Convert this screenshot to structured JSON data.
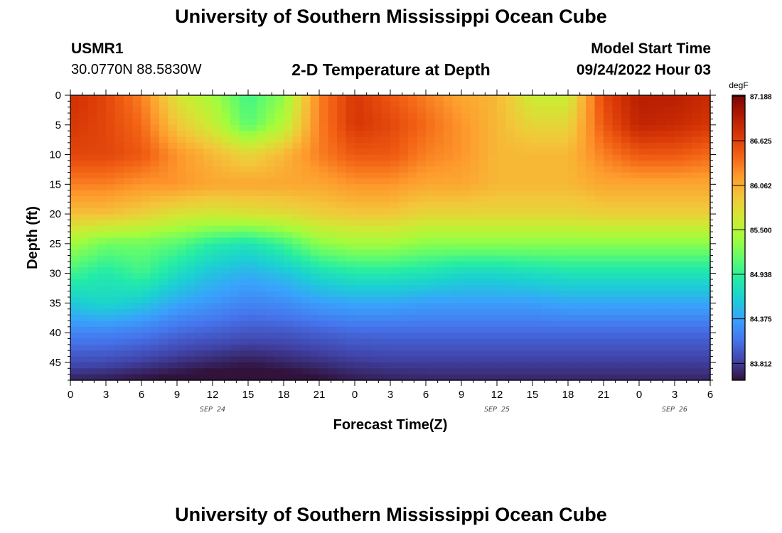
{
  "header": {
    "title": "University of Southern Mississippi Ocean Cube",
    "station": "USMR1",
    "coords": "30.0770N  88.5830W",
    "plot_title": "2-D Temperature at Depth",
    "model_label": "Model Start Time",
    "model_time": "09/24/2022 Hour 03"
  },
  "footer": {
    "title": "University of Southern Mississippi Ocean Cube"
  },
  "colors": {
    "scale": [
      "#30123b",
      "#4145ab",
      "#4675ed",
      "#39a2fc",
      "#1bcfd4",
      "#24eca6",
      "#61fc6c",
      "#a4fc3b",
      "#d1e834",
      "#f3c63a",
      "#fe9b2d",
      "#f36315",
      "#d93806",
      "#b11901",
      "#7a0403"
    ]
  },
  "chart_data": {
    "type": "heatmap",
    "title": "2-D Temperature at Depth",
    "xlabel": "Forecast Time(Z)",
    "ylabel": "Depth (ft)",
    "colorbar_unit": "degF",
    "x_ticks": [
      "0",
      "3",
      "6",
      "9",
      "12",
      "15",
      "18",
      "21",
      "0",
      "3",
      "6",
      "9",
      "12",
      "15",
      "18",
      "21",
      "0",
      "3",
      "6"
    ],
    "x_range_hours": [
      0,
      54
    ],
    "date_labels": [
      {
        "label": "SEP 24",
        "hour": 12
      },
      {
        "label": "SEP 25",
        "hour": 36
      },
      {
        "label": "SEP 26",
        "hour": 51
      }
    ],
    "y_ticks": [
      0,
      5,
      10,
      15,
      20,
      25,
      30,
      35,
      40,
      45
    ],
    "y_range": [
      0,
      48
    ],
    "colorbar_ticks": [
      "87.188",
      "86.625",
      "86.062",
      "85.500",
      "84.938",
      "84.375",
      "83.812"
    ],
    "value_range": [
      83.6,
      87.2
    ],
    "grid": false,
    "legend": "colorbar-right",
    "grid_hours": [
      0,
      3,
      6,
      9,
      12,
      15,
      18,
      21,
      24,
      27,
      30,
      33,
      36,
      39,
      42,
      45,
      48,
      51,
      54
    ],
    "grid_depths": [
      0,
      5,
      10,
      15,
      20,
      25,
      30,
      35,
      40,
      45,
      48
    ],
    "values": [
      [
        86.75,
        86.6,
        86.3,
        85.7,
        85.4,
        85.0,
        85.3,
        86.3,
        86.7,
        86.5,
        86.3,
        86.1,
        86.0,
        85.6,
        85.6,
        86.6,
        86.9,
        86.9,
        86.8
      ],
      [
        86.7,
        86.6,
        86.4,
        85.9,
        85.6,
        85.1,
        85.5,
        86.3,
        86.7,
        86.6,
        86.4,
        86.2,
        86.0,
        85.8,
        85.8,
        86.5,
        86.85,
        86.8,
        86.7
      ],
      [
        86.6,
        86.6,
        86.5,
        86.2,
        86.0,
        85.8,
        86.0,
        86.3,
        86.5,
        86.5,
        86.3,
        86.2,
        86.0,
        86.0,
        86.0,
        86.3,
        86.5,
        86.5,
        86.4
      ],
      [
        86.3,
        86.3,
        86.2,
        86.2,
        86.1,
        86.1,
        86.1,
        86.1,
        86.2,
        86.2,
        86.1,
        86.1,
        86.0,
        86.0,
        86.0,
        86.1,
        86.1,
        86.1,
        86.1
      ],
      [
        85.95,
        85.95,
        85.85,
        85.7,
        85.65,
        85.7,
        85.75,
        85.85,
        85.9,
        85.9,
        85.8,
        85.8,
        85.8,
        85.8,
        85.8,
        85.85,
        85.85,
        85.85,
        85.85
      ],
      [
        85.4,
        85.2,
        85.2,
        85.1,
        84.9,
        84.8,
        85.0,
        85.3,
        85.4,
        85.4,
        85.3,
        85.3,
        85.3,
        85.3,
        85.3,
        85.3,
        85.3,
        85.3,
        85.3
      ],
      [
        85.0,
        84.85,
        85.0,
        84.75,
        84.55,
        84.45,
        84.55,
        84.75,
        84.85,
        84.85,
        84.8,
        84.7,
        84.7,
        84.75,
        84.8,
        84.8,
        84.8,
        84.8,
        84.8
      ],
      [
        84.6,
        84.7,
        84.6,
        84.4,
        84.3,
        84.2,
        84.25,
        84.35,
        84.4,
        84.4,
        84.35,
        84.35,
        84.35,
        84.35,
        84.4,
        84.4,
        84.4,
        84.4,
        84.4
      ],
      [
        84.2,
        84.2,
        84.15,
        84.05,
        84.0,
        83.95,
        83.95,
        84.0,
        84.05,
        84.05,
        84.05,
        84.05,
        84.05,
        84.05,
        84.05,
        84.05,
        84.05,
        84.05,
        84.05
      ],
      [
        83.9,
        83.88,
        83.82,
        83.75,
        83.7,
        83.65,
        83.7,
        83.75,
        83.8,
        83.82,
        83.82,
        83.82,
        83.82,
        83.82,
        83.82,
        83.82,
        83.82,
        83.82,
        83.82
      ],
      [
        83.68,
        83.65,
        83.6,
        83.55,
        83.5,
        83.48,
        83.5,
        83.58,
        83.65,
        83.68,
        83.7,
        83.7,
        83.7,
        83.7,
        83.7,
        83.7,
        83.7,
        83.7,
        83.7
      ]
    ]
  }
}
